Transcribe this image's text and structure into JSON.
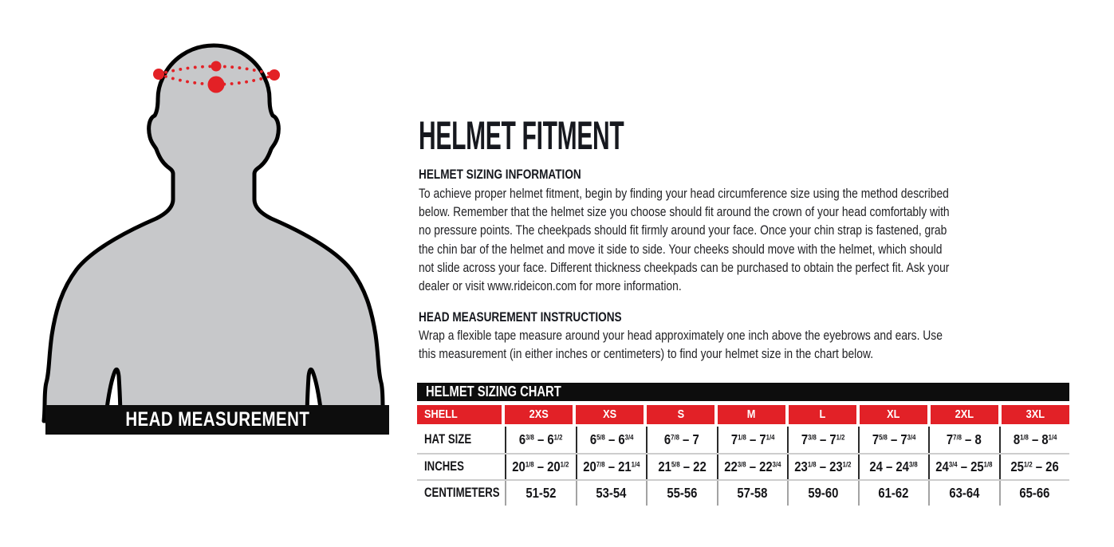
{
  "figure": {
    "banner_label": "HEAD MEASUREMENT",
    "colors": {
      "body": "#c7c8ca",
      "outline": "#000000",
      "dots": "#e32126",
      "banner_bg": "#0d0d0d",
      "banner_text": "#ffffff"
    }
  },
  "content": {
    "title": "HELMET FITMENT",
    "sections": [
      {
        "heading": "HELMET SIZING INFORMATION",
        "body": "To achieve proper helmet fitment, begin by finding your head circumference size using the method described below. Remember that the helmet size you choose should fit around the crown of your head comfortably with no pressure points. The cheekpads should fit firmly around your face. Once your chin strap is fastened, grab the chin bar of the helmet and move it side to side. Your cheeks should move with the helmet, which should not slide across your face. Different thickness cheekpads can be purchased to obtain the perfect fit. Ask your dealer or visit www.rideicon.com for more information."
      },
      {
        "heading": "HEAD MEASUREMENT INSTRUCTIONS",
        "body": "Wrap a flexible tape measure around your head approximately one inch above the eyebrows and ears. Use this measurement (in either inches or centimeters) to find your helmet size in the chart below."
      }
    ]
  },
  "chart_data": {
    "type": "table",
    "title": "HELMET SIZING CHART",
    "columns": [
      "SHELL",
      "2XS",
      "XS",
      "S",
      "M",
      "L",
      "XL",
      "2XL",
      "3XL"
    ],
    "rows": [
      {
        "label": "HAT SIZE",
        "values": [
          "6^3/8^ – 6^1/2^",
          "6^5/8^ – 6^3/4^",
          "6^7/8^ – 7",
          "7^1/8^ – 7^1/4^",
          "7^3/8^ – 7^1/2^",
          "7^5/8^ – 7^3/4^",
          "7^7/8^ – 8",
          "8^1/8^ – 8^1/4^"
        ]
      },
      {
        "label": "INCHES",
        "values": [
          "20^1/8^ – 20^1/2^",
          "20^7/8^ – 21^1/4^",
          "21^5/8^ – 22",
          "22^3/8^ – 22^3/4^",
          "23^1/8^ – 23^1/2^",
          "24 – 24^3/8^",
          "24^3/4^ – 25^1/8^",
          "25^1/2^ – 26"
        ]
      },
      {
        "label": "CENTIMETERS",
        "values": [
          "51-52",
          "53-54",
          "55-56",
          "57-58",
          "59-60",
          "61-62",
          "63-64",
          "65-66"
        ]
      }
    ],
    "colors": {
      "header_bg": "#e22127",
      "header_text": "#ffffff",
      "title_bar_bg": "#0d0d0d",
      "title_bar_text": "#ffffff",
      "row_divider_dark": "#2b2b2b",
      "row_divider_light": "#a3a3a3",
      "row_separator": "#cdcdcd"
    }
  }
}
